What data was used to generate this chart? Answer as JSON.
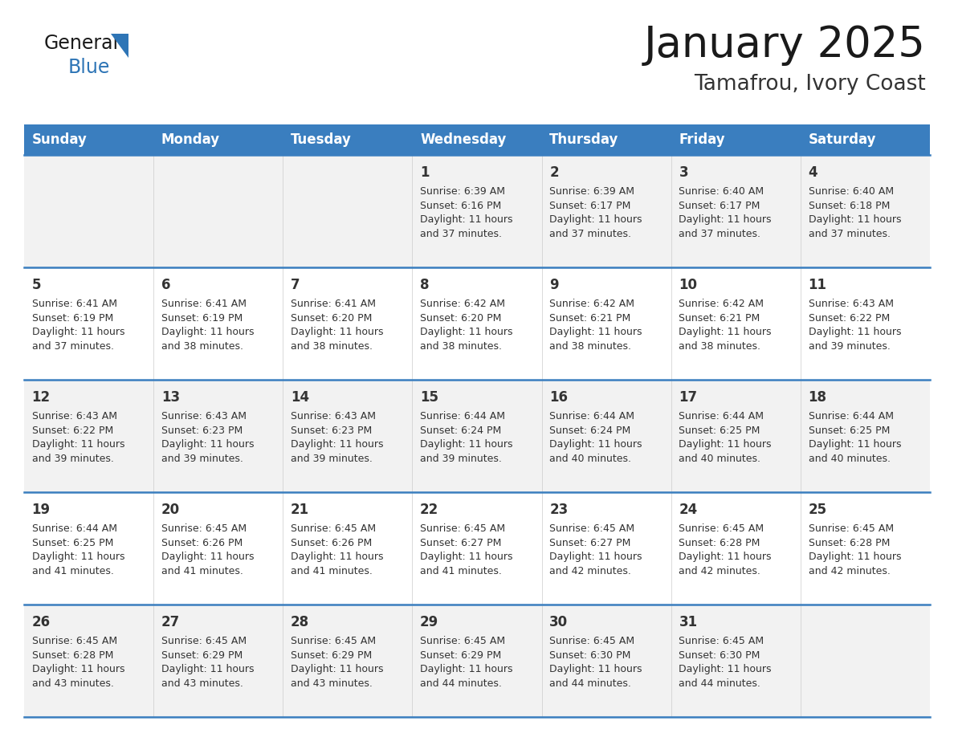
{
  "title": "January 2025",
  "subtitle": "Tamafrou, Ivory Coast",
  "days_of_week": [
    "Sunday",
    "Monday",
    "Tuesday",
    "Wednesday",
    "Thursday",
    "Friday",
    "Saturday"
  ],
  "header_bg": "#3a7ebf",
  "header_text_color": "#ffffff",
  "row_bg_odd": "#f2f2f2",
  "row_bg_even": "#ffffff",
  "cell_text_color": "#333333",
  "divider_color": "#3a7ebf",
  "calendar_data": [
    [
      "",
      "",
      "",
      "1\nSunrise: 6:39 AM\nSunset: 6:16 PM\nDaylight: 11 hours\nand 37 minutes.",
      "2\nSunrise: 6:39 AM\nSunset: 6:17 PM\nDaylight: 11 hours\nand 37 minutes.",
      "3\nSunrise: 6:40 AM\nSunset: 6:17 PM\nDaylight: 11 hours\nand 37 minutes.",
      "4\nSunrise: 6:40 AM\nSunset: 6:18 PM\nDaylight: 11 hours\nand 37 minutes."
    ],
    [
      "5\nSunrise: 6:41 AM\nSunset: 6:19 PM\nDaylight: 11 hours\nand 37 minutes.",
      "6\nSunrise: 6:41 AM\nSunset: 6:19 PM\nDaylight: 11 hours\nand 38 minutes.",
      "7\nSunrise: 6:41 AM\nSunset: 6:20 PM\nDaylight: 11 hours\nand 38 minutes.",
      "8\nSunrise: 6:42 AM\nSunset: 6:20 PM\nDaylight: 11 hours\nand 38 minutes.",
      "9\nSunrise: 6:42 AM\nSunset: 6:21 PM\nDaylight: 11 hours\nand 38 minutes.",
      "10\nSunrise: 6:42 AM\nSunset: 6:21 PM\nDaylight: 11 hours\nand 38 minutes.",
      "11\nSunrise: 6:43 AM\nSunset: 6:22 PM\nDaylight: 11 hours\nand 39 minutes."
    ],
    [
      "12\nSunrise: 6:43 AM\nSunset: 6:22 PM\nDaylight: 11 hours\nand 39 minutes.",
      "13\nSunrise: 6:43 AM\nSunset: 6:23 PM\nDaylight: 11 hours\nand 39 minutes.",
      "14\nSunrise: 6:43 AM\nSunset: 6:23 PM\nDaylight: 11 hours\nand 39 minutes.",
      "15\nSunrise: 6:44 AM\nSunset: 6:24 PM\nDaylight: 11 hours\nand 39 minutes.",
      "16\nSunrise: 6:44 AM\nSunset: 6:24 PM\nDaylight: 11 hours\nand 40 minutes.",
      "17\nSunrise: 6:44 AM\nSunset: 6:25 PM\nDaylight: 11 hours\nand 40 minutes.",
      "18\nSunrise: 6:44 AM\nSunset: 6:25 PM\nDaylight: 11 hours\nand 40 minutes."
    ],
    [
      "19\nSunrise: 6:44 AM\nSunset: 6:25 PM\nDaylight: 11 hours\nand 41 minutes.",
      "20\nSunrise: 6:45 AM\nSunset: 6:26 PM\nDaylight: 11 hours\nand 41 minutes.",
      "21\nSunrise: 6:45 AM\nSunset: 6:26 PM\nDaylight: 11 hours\nand 41 minutes.",
      "22\nSunrise: 6:45 AM\nSunset: 6:27 PM\nDaylight: 11 hours\nand 41 minutes.",
      "23\nSunrise: 6:45 AM\nSunset: 6:27 PM\nDaylight: 11 hours\nand 42 minutes.",
      "24\nSunrise: 6:45 AM\nSunset: 6:28 PM\nDaylight: 11 hours\nand 42 minutes.",
      "25\nSunrise: 6:45 AM\nSunset: 6:28 PM\nDaylight: 11 hours\nand 42 minutes."
    ],
    [
      "26\nSunrise: 6:45 AM\nSunset: 6:28 PM\nDaylight: 11 hours\nand 43 minutes.",
      "27\nSunrise: 6:45 AM\nSunset: 6:29 PM\nDaylight: 11 hours\nand 43 minutes.",
      "28\nSunrise: 6:45 AM\nSunset: 6:29 PM\nDaylight: 11 hours\nand 43 minutes.",
      "29\nSunrise: 6:45 AM\nSunset: 6:29 PM\nDaylight: 11 hours\nand 44 minutes.",
      "30\nSunrise: 6:45 AM\nSunset: 6:30 PM\nDaylight: 11 hours\nand 44 minutes.",
      "31\nSunrise: 6:45 AM\nSunset: 6:30 PM\nDaylight: 11 hours\nand 44 minutes.",
      ""
    ]
  ],
  "logo_text_general": "General",
  "logo_text_blue": "Blue",
  "logo_triangle_color": "#2e75b6",
  "title_fontsize": 38,
  "subtitle_fontsize": 19,
  "header_fontsize": 12,
  "cell_number_fontsize": 12,
  "cell_body_fontsize": 9,
  "logo_general_fontsize": 17,
  "logo_blue_fontsize": 17
}
